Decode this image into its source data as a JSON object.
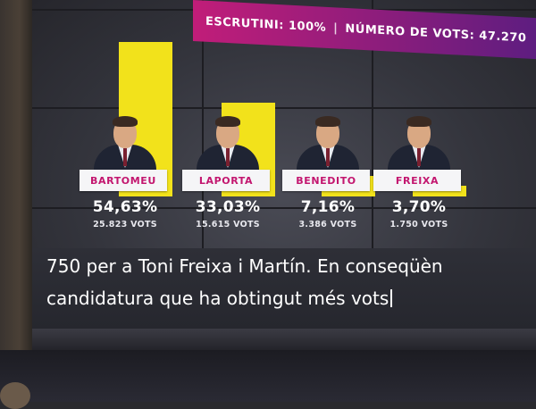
{
  "header": {
    "left_text": "ESCRUTINI: 100%",
    "right_text": "NÚMERO DE VOTS: 47.270"
  },
  "chart_data": {
    "type": "bar",
    "categories": [
      "BARTOMEU",
      "LAPORTA",
      "BENEDITO",
      "FREIXA"
    ],
    "values": [
      54.63,
      33.03,
      7.16,
      3.7
    ],
    "percent_labels": [
      "54,63%",
      "33,03%",
      "7,16%",
      "3,70%"
    ],
    "vote_labels": [
      "25.823 VOTS",
      "15.615 VOTS",
      "3.386 VOTS",
      "1.750 VOTS"
    ],
    "bar_color": "#f2e21b",
    "label_color": "#c3166f",
    "ylim": [
      0,
      60
    ],
    "grid": false,
    "legend": "none"
  },
  "subtitle": {
    "line1": "750 per a Toni Freixa i Martín. En conseqüèn",
    "line2": "candidatura que ha obtingut més vots"
  }
}
